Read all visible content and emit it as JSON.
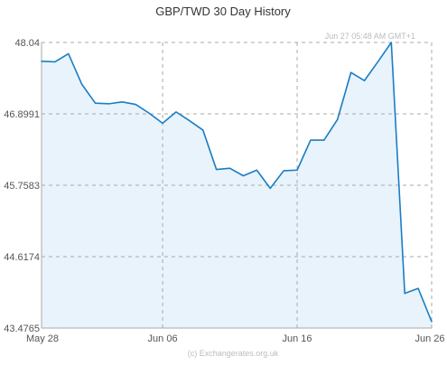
{
  "chart_data": {
    "type": "area",
    "title": "GBP/TWD  30 Day History",
    "timestamp": "Jun 27  05:48 AM GMT+1",
    "watermark": "(c) Exchangerates.org.uk",
    "xlabel": "",
    "ylabel": "",
    "ylim": [
      43.4765,
      48.04
    ],
    "y_ticks": [
      "48.04",
      "46.8991",
      "45.7583",
      "44.6174",
      "43.4765"
    ],
    "x_ticks": [
      {
        "label": "May 28",
        "day": 0
      },
      {
        "label": "Jun 06",
        "day": 9
      },
      {
        "label": "Jun 16",
        "day": 19
      },
      {
        "label": "Jun 26",
        "day": 29
      }
    ],
    "grid": true,
    "colors": {
      "line": "#1a7dc4",
      "fill": "#e8f3fb",
      "grid": "#aaaaaa",
      "axis_text": "#555555",
      "title": "#333333",
      "faint_text": "#bbbbbb"
    },
    "x": [
      "May 28",
      "May 29",
      "May 30",
      "May 31",
      "Jun 01",
      "Jun 02",
      "Jun 03",
      "Jun 04",
      "Jun 05",
      "Jun 06",
      "Jun 07",
      "Jun 08",
      "Jun 09",
      "Jun 10",
      "Jun 11",
      "Jun 12",
      "Jun 13",
      "Jun 14",
      "Jun 15",
      "Jun 16",
      "Jun 17",
      "Jun 18",
      "Jun 19",
      "Jun 20",
      "Jun 21",
      "Jun 22",
      "Jun 23",
      "Jun 24",
      "Jun 25",
      "Jun 26"
    ],
    "values": [
      47.74,
      47.73,
      47.86,
      47.37,
      47.07,
      47.06,
      47.09,
      47.05,
      46.91,
      46.75,
      46.93,
      46.79,
      46.64,
      46.01,
      46.03,
      45.91,
      46.0,
      45.71,
      45.99,
      46.0,
      46.48,
      46.48,
      46.81,
      47.56,
      47.43,
      47.73,
      48.04,
      44.03,
      44.11,
      43.58
    ]
  }
}
